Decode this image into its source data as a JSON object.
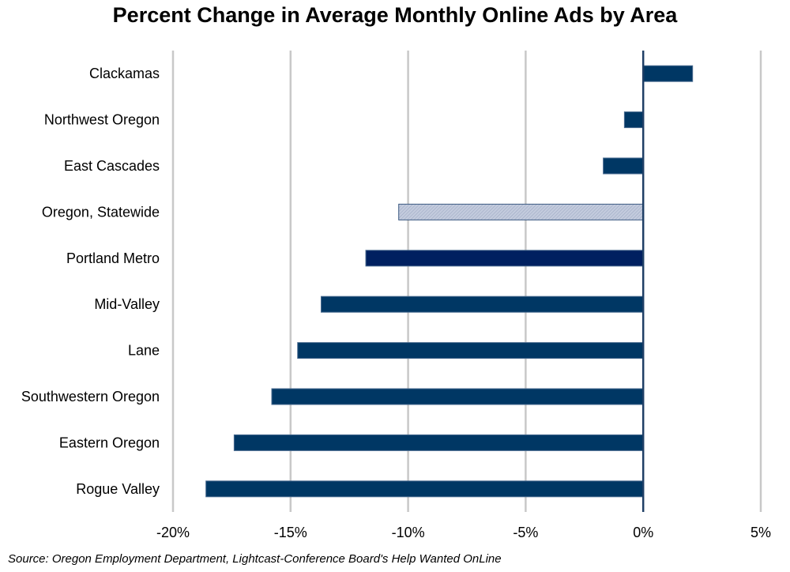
{
  "chart_data": {
    "type": "bar",
    "orientation": "horizontal",
    "title": "Percent Change in Average Monthly Online Ads by Area",
    "xlabel": "",
    "ylabel": "",
    "categories": [
      "Clackamas",
      "Northwest Oregon",
      "East Cascades",
      "Oregon, Statewide",
      "Portland Metro",
      "Mid-Valley",
      "Lane",
      "Southwestern Oregon",
      "Eastern Oregon",
      "Rogue Valley"
    ],
    "values": [
      2.1,
      -0.8,
      -1.7,
      -10.4,
      -11.8,
      -13.7,
      -14.7,
      -15.8,
      -17.4,
      -18.6
    ],
    "unit": "%",
    "xlim": [
      -20,
      5
    ],
    "xticks": [
      -20,
      -15,
      -10,
      -5,
      0,
      5
    ],
    "xtick_labels": [
      "-20%",
      "-15%",
      "-10%",
      "-5%",
      "0%",
      "5%"
    ],
    "grid": "vertical",
    "highlight": {
      "category": "Oregon, Statewide",
      "style": "hatched light blue"
    },
    "colors": {
      "bar": "#003764",
      "highlight_fill": "#b4bed5",
      "highlight_stroke": "#3c5a82",
      "portland": "#002060",
      "grid": "#c8c8c8",
      "zero_axis": "#1f3f66"
    }
  },
  "footer": {
    "source": "Source: Oregon Employment Department, Lightcast-Conference Board's Help Wanted OnLine"
  }
}
